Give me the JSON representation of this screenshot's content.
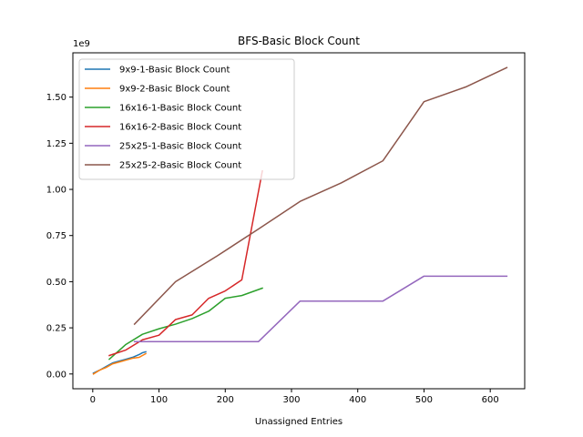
{
  "chart_data": {
    "type": "line",
    "title": "BFS-Basic Block Count",
    "xlabel": "Unassigned Entries",
    "ylabel": "",
    "y_offset_label": "1e9",
    "xlim": [
      -30,
      652
    ],
    "ylim": [
      -0.08,
      1.74
    ],
    "x_ticks": [
      0,
      100,
      200,
      300,
      400,
      500,
      600
    ],
    "x_tick_labels": [
      "0",
      "100",
      "200",
      "300",
      "400",
      "500",
      "600"
    ],
    "y_ticks": [
      0.0,
      0.25,
      0.5,
      0.75,
      1.0,
      1.25,
      1.5
    ],
    "y_tick_labels": [
      "0.00",
      "0.25",
      "0.50",
      "0.75",
      "1.00",
      "1.25",
      "1.50"
    ],
    "grid": false,
    "legend_position": "upper left",
    "series": [
      {
        "name": "9x9-1-Basic Block Count",
        "color": "#1f77b4",
        "x": [
          1,
          10,
          20,
          30,
          40,
          50,
          60,
          70,
          75,
          80
        ],
        "y": [
          0.005,
          0.02,
          0.04,
          0.06,
          0.07,
          0.08,
          0.09,
          0.105,
          0.115,
          0.12
        ]
      },
      {
        "name": "9x9-2-Basic Block Count",
        "color": "#ff7f0e",
        "x": [
          1,
          10,
          20,
          30,
          40,
          50,
          60,
          70,
          75,
          80
        ],
        "y": [
          0.0,
          0.02,
          0.035,
          0.055,
          0.065,
          0.075,
          0.085,
          0.09,
          0.1,
          0.11
        ]
      },
      {
        "name": "16x16-1-Basic Block Count",
        "color": "#2ca02c",
        "x": [
          25,
          50,
          75,
          100,
          125,
          150,
          175,
          200,
          225,
          256
        ],
        "y": [
          0.08,
          0.16,
          0.215,
          0.245,
          0.27,
          0.3,
          0.34,
          0.41,
          0.425,
          0.465
        ]
      },
      {
        "name": "16x16-2-Basic Block Count",
        "color": "#d62728",
        "x": [
          25,
          50,
          75,
          100,
          125,
          150,
          175,
          200,
          225,
          256
        ],
        "y": [
          0.1,
          0.13,
          0.185,
          0.21,
          0.295,
          0.32,
          0.41,
          0.45,
          0.51,
          1.1
        ]
      },
      {
        "name": "25x25-1-Basic Block Count",
        "color": "#9467bd",
        "x": [
          63,
          125,
          188,
          250,
          313,
          375,
          438,
          500,
          563,
          625
        ],
        "y": [
          0.175,
          0.175,
          0.175,
          0.175,
          0.395,
          0.395,
          0.395,
          0.53,
          0.53,
          0.53
        ]
      },
      {
        "name": "25x25-2-Basic Block Count",
        "color": "#8c564b",
        "x": [
          63,
          125,
          188,
          250,
          313,
          375,
          438,
          500,
          563,
          625
        ],
        "y": [
          0.27,
          0.5,
          0.64,
          0.785,
          0.935,
          1.035,
          1.155,
          1.475,
          1.555,
          1.66
        ]
      }
    ]
  }
}
